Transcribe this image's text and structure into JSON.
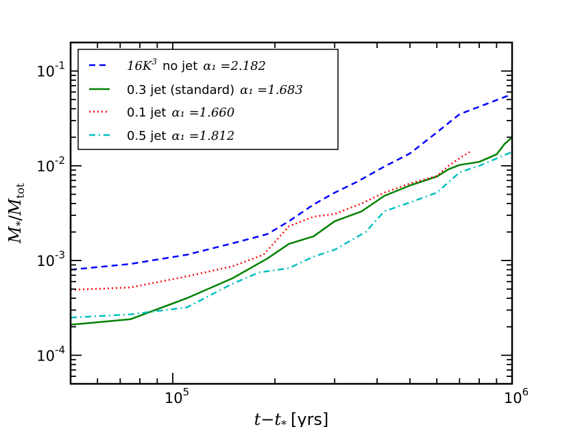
{
  "chart_data": {
    "type": "line",
    "title": "",
    "xlabel": "t−t",
    "xlabel_sub": "*",
    "xlabel_unit": "[yrs]",
    "ylabel": "M",
    "ylabel_sub": "*",
    "ylabel_den": "M",
    "ylabel_den_sub": "tot",
    "xscale": "log",
    "yscale": "log",
    "xlim": [
      50000,
      1000000
    ],
    "ylim": [
      5e-05,
      0.2
    ],
    "x_ticks": [
      {
        "value": 100000,
        "base": "10",
        "exp": "5"
      },
      {
        "value": 1000000,
        "base": "10",
        "exp": "6"
      }
    ],
    "y_ticks": [
      {
        "value": 0.1,
        "base": "10",
        "exp": "-1"
      },
      {
        "value": 0.01,
        "base": "10",
        "exp": "-2"
      },
      {
        "value": 0.001,
        "base": "10",
        "exp": "-3"
      },
      {
        "value": 0.0001,
        "base": "10",
        "exp": "-4"
      }
    ],
    "legend_position": "top-left",
    "series": [
      {
        "name": "16K³  no jet",
        "label_text": "no jet",
        "label_math": "16K",
        "label_sup": "3",
        "alpha": "α₁ =2.182",
        "color": "#0000ff",
        "style": "dashed",
        "x": [
          50000,
          75000,
          110000,
          150000,
          190000,
          220000,
          260000,
          300000,
          350000,
          420000,
          500000,
          600000,
          700000,
          800000,
          1000000
        ],
        "y": [
          0.0008,
          0.00092,
          0.00115,
          0.00152,
          0.0019,
          0.0026,
          0.0039,
          0.0052,
          0.0068,
          0.0098,
          0.0135,
          0.0225,
          0.035,
          0.042,
          0.057
        ]
      },
      {
        "name": "0.3 jet (standard)",
        "label_text": "0.3 jet (standard)",
        "alpha": "α₁ =1.683",
        "color": "#008000",
        "style": "solid",
        "x": [
          50000,
          75000,
          110000,
          150000,
          190000,
          220000,
          260000,
          300000,
          360000,
          420000,
          500000,
          600000,
          650000,
          700000,
          800000,
          900000,
          950000,
          1000000
        ],
        "y": [
          0.00021,
          0.00024,
          0.0004,
          0.00065,
          0.00105,
          0.0015,
          0.0018,
          0.0026,
          0.0033,
          0.0048,
          0.0062,
          0.0077,
          0.0092,
          0.0102,
          0.011,
          0.0132,
          0.017,
          0.02
        ]
      },
      {
        "name": "0.1 jet",
        "label_text": "0.1 jet",
        "alpha": "α₁ =1.660",
        "color": "#ff0000",
        "style": "dotted",
        "x": [
          50000,
          75000,
          110000,
          150000,
          185000,
          220000,
          260000,
          300000,
          360000,
          420000,
          500000,
          600000,
          650000,
          700000,
          750000
        ],
        "y": [
          0.00049,
          0.00052,
          0.00068,
          0.00087,
          0.00115,
          0.0023,
          0.0029,
          0.0031,
          0.004,
          0.0052,
          0.0065,
          0.0078,
          0.01,
          0.012,
          0.014
        ]
      },
      {
        "name": "0.5 jet",
        "label_text": "0.5 jet",
        "alpha": "α₁ =1.812",
        "color": "#00bfbf",
        "style": "dashdot",
        "x": [
          50000,
          75000,
          110000,
          150000,
          180000,
          220000,
          260000,
          300000,
          370000,
          420000,
          500000,
          600000,
          700000,
          800000,
          1000000
        ],
        "y": [
          0.00025,
          0.00027,
          0.00032,
          0.00057,
          0.00075,
          0.00083,
          0.0011,
          0.0013,
          0.002,
          0.0033,
          0.0041,
          0.0052,
          0.0085,
          0.01,
          0.014
        ]
      }
    ]
  }
}
